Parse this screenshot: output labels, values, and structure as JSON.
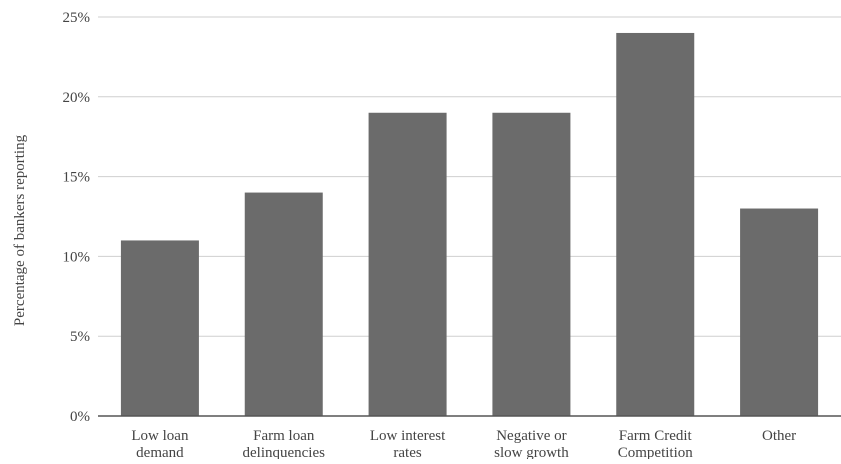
{
  "chart_data": {
    "type": "bar",
    "categories": [
      [
        "Low loan",
        "demand"
      ],
      [
        "Farm loan",
        "delinquencies"
      ],
      [
        "Low interest",
        "rates"
      ],
      [
        "Negative or",
        "slow growth"
      ],
      [
        "Farm Credit",
        "Competition"
      ],
      [
        "Other"
      ]
    ],
    "values": [
      11,
      14,
      19,
      19,
      24,
      13
    ],
    "ylabel": "Percentage of bankers reporting",
    "xlabel": "",
    "title": "",
    "ylim": [
      0,
      25
    ],
    "yticks": [
      "0%",
      "5%",
      "10%",
      "15%",
      "20%",
      "25%"
    ],
    "grid": true,
    "bar_color": "#6b6b6b",
    "grid_color": "#cfcfcf",
    "axis_color": "#555555"
  }
}
